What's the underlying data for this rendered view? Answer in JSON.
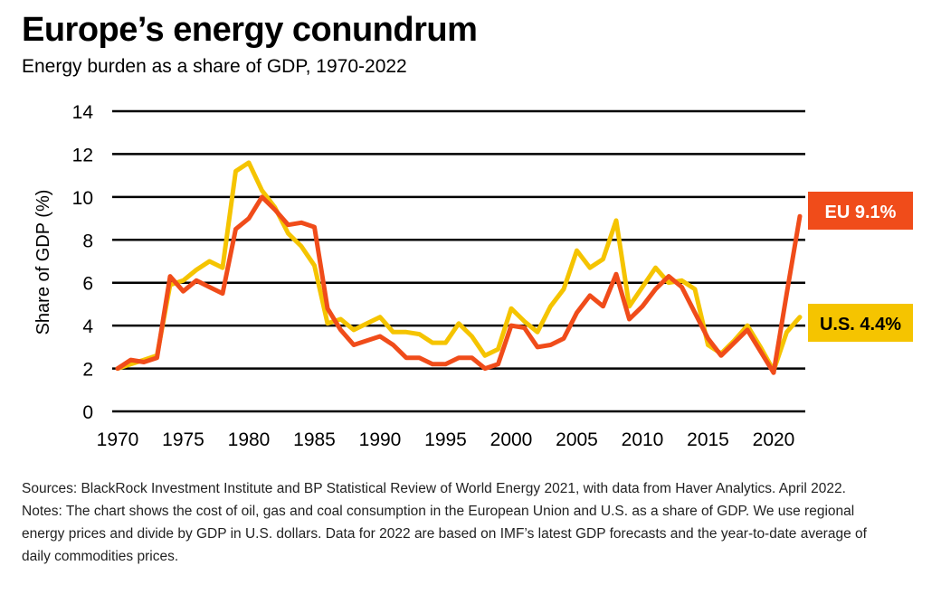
{
  "page": {
    "title": "Europe’s energy conundrum",
    "subtitle": "Energy burden as a share of GDP, 1970-2022",
    "footnote": "Sources: BlackRock Investment Institute and BP Statistical Review of World Energy 2021, with data from Haver Analytics. April 2022. Notes: The chart shows the cost of oil, gas and coal consumption in the European Union and U.S. as a share of GDP. We use regional energy prices and divide by GDP in U.S. dollars. Data for 2022 are based on IMF’s latest GDP forecasts and the year-to-date average of daily commodities prices."
  },
  "chart_data": {
    "type": "line",
    "title": "Europe’s energy conundrum",
    "subtitle": "Energy burden as a share of GDP, 1970-2022",
    "xlabel": "",
    "ylabel": "Share of GDP (%)",
    "xlim": [
      1970,
      2022
    ],
    "ylim": [
      0,
      14
    ],
    "y_ticks": [
      0,
      2,
      4,
      6,
      8,
      10,
      12,
      14
    ],
    "x_ticks": [
      1970,
      1975,
      1980,
      1985,
      1990,
      1995,
      2000,
      2005,
      2010,
      2015,
      2020
    ],
    "grid": "horizontal",
    "legend": "end-of-line labels",
    "x": [
      1970,
      1971,
      1972,
      1973,
      1974,
      1975,
      1976,
      1977,
      1978,
      1979,
      1980,
      1981,
      1982,
      1983,
      1984,
      1985,
      1986,
      1987,
      1988,
      1989,
      1990,
      1991,
      1992,
      1993,
      1994,
      1995,
      1996,
      1997,
      1998,
      1999,
      2000,
      2001,
      2002,
      2003,
      2004,
      2005,
      2006,
      2007,
      2008,
      2009,
      2010,
      2011,
      2012,
      2013,
      2014,
      2015,
      2016,
      2017,
      2018,
      2019,
      2020,
      2021,
      2022
    ],
    "series": [
      {
        "name": "U.S.",
        "label": "U.S. 4.4%",
        "color": "#f5c400",
        "values": [
          2.0,
          2.2,
          2.4,
          2.6,
          5.9,
          6.1,
          6.6,
          7.0,
          6.7,
          11.2,
          11.6,
          10.3,
          9.5,
          8.3,
          7.7,
          6.8,
          4.1,
          4.3,
          3.8,
          4.1,
          4.4,
          3.7,
          3.7,
          3.6,
          3.2,
          3.2,
          4.1,
          3.5,
          2.6,
          2.9,
          4.8,
          4.2,
          3.7,
          4.9,
          5.7,
          7.5,
          6.7,
          7.1,
          8.9,
          4.9,
          5.8,
          6.7,
          6.0,
          6.1,
          5.7,
          3.1,
          2.7,
          3.3,
          4.0,
          3.0,
          1.9,
          3.7,
          4.4
        ]
      },
      {
        "name": "EU",
        "label": "EU 9.1%",
        "color": "#f04c1a",
        "values": [
          2.0,
          2.4,
          2.3,
          2.5,
          6.3,
          5.6,
          6.1,
          5.8,
          5.5,
          8.5,
          9.0,
          10.0,
          9.4,
          8.7,
          8.8,
          8.6,
          4.8,
          3.8,
          3.1,
          3.3,
          3.5,
          3.1,
          2.5,
          2.5,
          2.2,
          2.2,
          2.5,
          2.5,
          2.0,
          2.2,
          4.0,
          3.9,
          3.0,
          3.1,
          3.4,
          4.6,
          5.4,
          4.9,
          6.4,
          4.3,
          4.9,
          5.7,
          6.3,
          5.8,
          4.6,
          3.4,
          2.6,
          3.2,
          3.8,
          2.8,
          1.8,
          5.5,
          9.1
        ]
      }
    ]
  }
}
